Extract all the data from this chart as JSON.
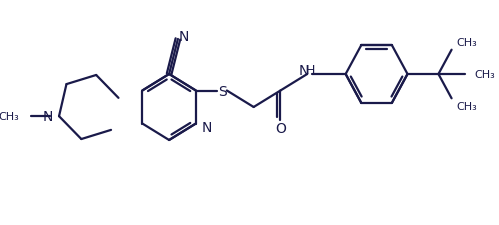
{
  "bg_color": "#ffffff",
  "line_color": "#1a1a4a",
  "line_width": 1.6,
  "figsize": [
    4.99,
    2.26
  ],
  "dpi": 100,
  "xlim": [
    0,
    499
  ],
  "ylim": [
    0,
    226
  ]
}
